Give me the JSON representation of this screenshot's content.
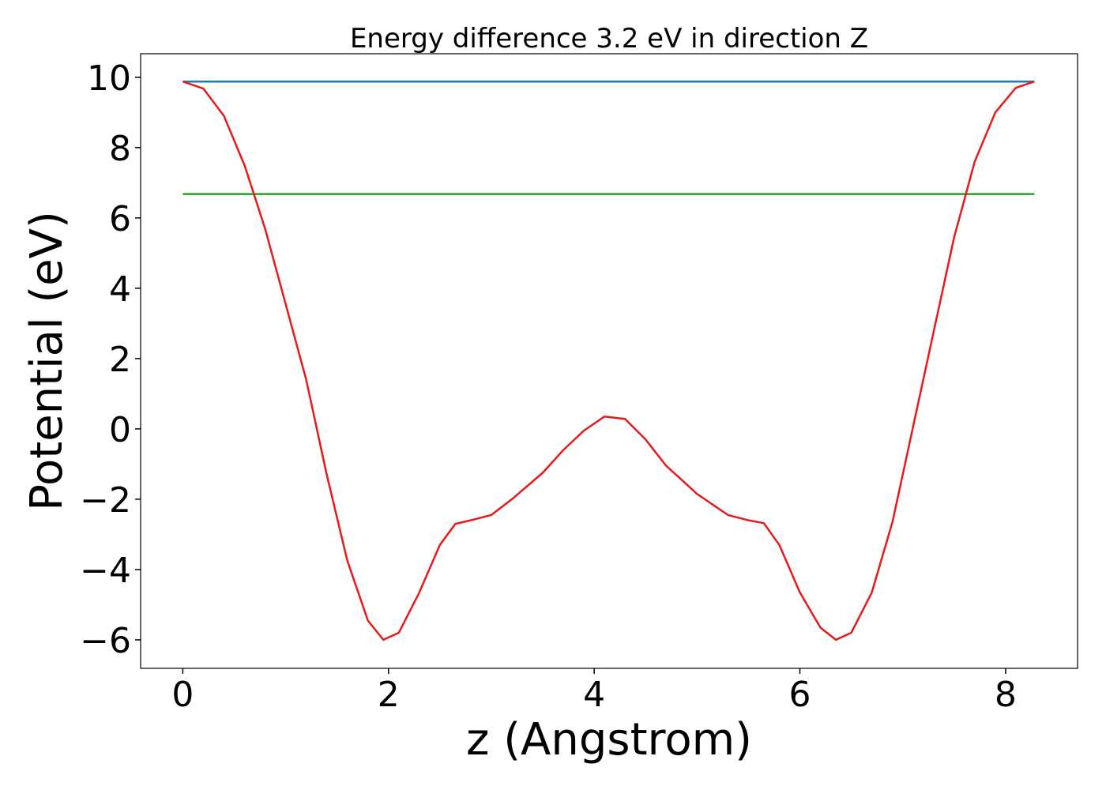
{
  "chart_data": {
    "type": "line",
    "title": "Energy difference 3.2 eV in direction Z",
    "xlabel": "z (Angstrom)",
    "ylabel": "Potential (eV)",
    "xlim": [
      -0.41,
      8.7
    ],
    "ylim": [
      -6.81,
      10.67
    ],
    "xticks": [
      0,
      2,
      4,
      6,
      8
    ],
    "yticks": [
      {
        "value": -6,
        "label": "−6"
      },
      {
        "value": -4,
        "label": "−4"
      },
      {
        "value": -2,
        "label": "−2"
      },
      0,
      2,
      4,
      6,
      8,
      10
    ],
    "grid": false,
    "series": [
      {
        "color": "#1f77b4",
        "x": [
          0,
          8.28
        ],
        "values": [
          9.88,
          9.88
        ]
      },
      {
        "color": "#2ca02c",
        "x": [
          0,
          8.28
        ],
        "values": [
          6.68,
          6.68
        ]
      },
      {
        "color": "#e41a1c",
        "x": [
          0,
          0.2,
          0.4,
          0.6,
          0.8,
          1.0,
          1.2,
          1.4,
          1.6,
          1.8,
          1.95,
          2.1,
          2.3,
          2.5,
          2.65,
          2.8,
          3.0,
          3.2,
          3.5,
          3.7,
          3.9,
          4.1,
          4.3,
          4.5,
          4.7,
          5.0,
          5.3,
          5.5,
          5.65,
          5.8,
          6.0,
          6.2,
          6.35,
          6.5,
          6.7,
          6.9,
          7.1,
          7.3,
          7.5,
          7.7,
          7.9,
          8.1,
          8.28
        ],
        "values": [
          9.88,
          9.68,
          8.9,
          7.5,
          5.7,
          3.55,
          1.4,
          -1.3,
          -3.75,
          -5.45,
          -6.0,
          -5.8,
          -4.65,
          -3.3,
          -2.7,
          -2.6,
          -2.45,
          -2.0,
          -1.25,
          -0.6,
          -0.05,
          0.35,
          0.28,
          -0.3,
          -1.05,
          -1.85,
          -2.45,
          -2.6,
          -2.68,
          -3.3,
          -4.65,
          -5.65,
          -6.0,
          -5.8,
          -4.65,
          -2.65,
          0.05,
          2.75,
          5.45,
          7.6,
          9.0,
          9.7,
          9.88
        ]
      }
    ]
  }
}
